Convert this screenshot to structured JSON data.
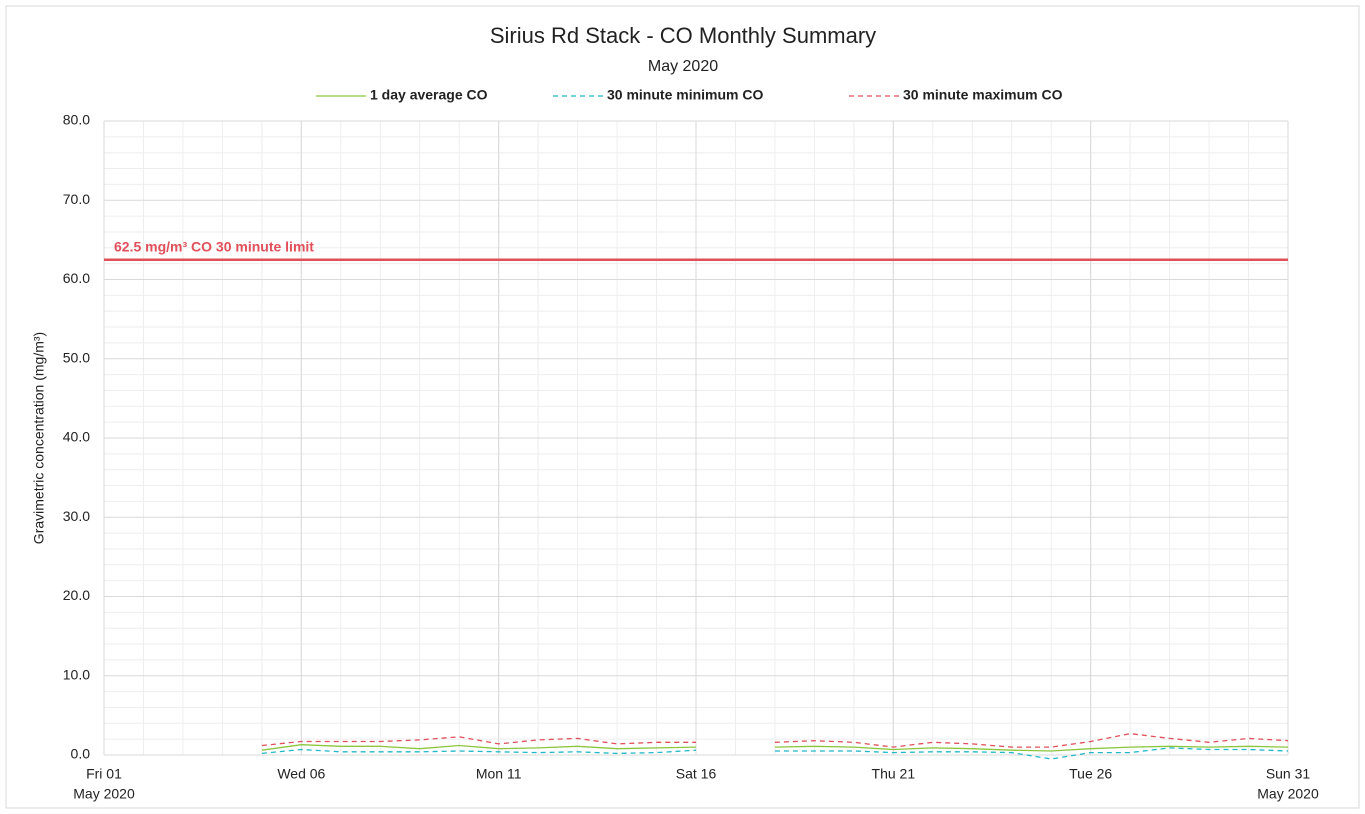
{
  "chart_data": {
    "type": "line",
    "title": "Sirius Rd Stack - CO Monthly Summary",
    "subtitle": "May 2020",
    "y_label": "Gravimetric concentration (mg/m³)",
    "x": [
      "2020-05-05",
      "2020-05-06",
      "2020-05-07",
      "2020-05-08",
      "2020-05-09",
      "2020-05-10",
      "2020-05-11",
      "2020-05-12",
      "2020-05-13",
      "2020-05-14",
      "2020-05-15",
      "2020-05-16",
      "2020-05-17",
      "2020-05-18",
      "2020-05-19",
      "2020-05-20",
      "2020-05-21",
      "2020-05-22",
      "2020-05-23",
      "2020-05-24",
      "2020-05-25",
      "2020-05-26",
      "2020-05-27",
      "2020-05-28",
      "2020-05-29",
      "2020-05-30",
      "2020-05-31"
    ],
    "series": [
      {
        "name": "1 day average CO",
        "color": "#8cc63f",
        "dash": "solid",
        "values": [
          0.6,
          1.3,
          1.1,
          1.1,
          0.8,
          1.2,
          0.8,
          0.9,
          1.1,
          0.8,
          0.9,
          1.0,
          null,
          1.0,
          1.1,
          1.0,
          0.7,
          0.9,
          0.8,
          0.6,
          0.5,
          0.8,
          1.0,
          1.1,
          1.0,
          1.1,
          1.0
        ]
      },
      {
        "name": "30 minute minimum CO",
        "color": "#20b8c8",
        "dash": "dashed",
        "values": [
          0.2,
          0.7,
          0.4,
          0.4,
          0.4,
          0.5,
          0.4,
          0.3,
          0.4,
          0.2,
          0.3,
          0.6,
          null,
          0.5,
          0.5,
          0.5,
          0.3,
          0.4,
          0.4,
          0.3,
          -0.5,
          0.3,
          0.3,
          0.9,
          0.7,
          0.7,
          0.5
        ]
      },
      {
        "name": "30 minute maximum CO",
        "color": "#e0505a",
        "dash": "dashed",
        "values": [
          1.2,
          1.7,
          1.7,
          1.7,
          1.9,
          2.3,
          1.4,
          1.9,
          2.1,
          1.4,
          1.6,
          1.6,
          null,
          1.6,
          1.8,
          1.6,
          1.0,
          1.6,
          1.4,
          1.0,
          1.0,
          1.7,
          2.7,
          2.1,
          1.6,
          2.1,
          1.8
        ]
      }
    ],
    "limit": {
      "value": 62.5,
      "label": "62.5 mg/m³ CO 30 minute limit",
      "color": "#e0505a"
    },
    "xlim": [
      "2020-05-01",
      "2020-05-31"
    ],
    "xticks": [
      {
        "value": "2020-05-01",
        "label": [
          "Fri 01",
          "May 2020"
        ]
      },
      {
        "value": "2020-05-06",
        "label": [
          "Wed 06"
        ]
      },
      {
        "value": "2020-05-11",
        "label": [
          "Mon 11"
        ]
      },
      {
        "value": "2020-05-16",
        "label": [
          "Sat 16"
        ]
      },
      {
        "value": "2020-05-21",
        "label": [
          "Thu 21"
        ]
      },
      {
        "value": "2020-05-26",
        "label": [
          "Tue 26"
        ]
      },
      {
        "value": "2020-05-31",
        "label": [
          "Sun 31",
          "May 2020"
        ]
      }
    ],
    "ylim": [
      0,
      80
    ],
    "yticks": [
      {
        "value": 0,
        "label": "0.0"
      },
      {
        "value": 10,
        "label": "10.0"
      },
      {
        "value": 20,
        "label": "20.0"
      },
      {
        "value": 30,
        "label": "30.0"
      },
      {
        "value": 40,
        "label": "40.0"
      },
      {
        "value": 50,
        "label": "50.0"
      },
      {
        "value": 60,
        "label": "60.0"
      },
      {
        "value": 70,
        "label": "70.0"
      },
      {
        "value": 80,
        "label": "80.0"
      }
    ],
    "grid": true,
    "minor_grid": true,
    "legend": "top"
  }
}
